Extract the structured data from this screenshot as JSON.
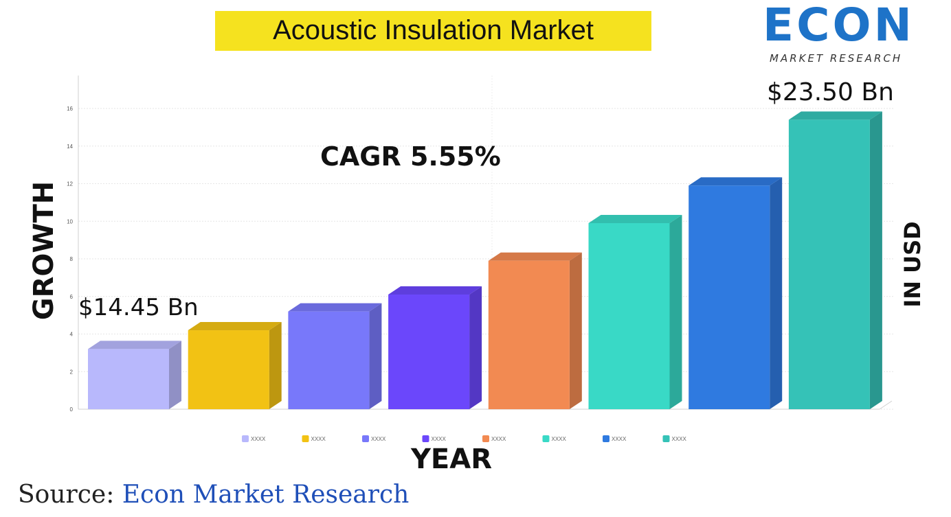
{
  "title": "Acoustic Insulation Market",
  "logo": {
    "text": "ECON",
    "subtitle": "MARKET RESEARCH"
  },
  "annotations": {
    "cagr": "CAGR 5.55%",
    "first_value": "$14.45 Bn",
    "last_value": "$23.50 Bn"
  },
  "source": {
    "prefix": "Source: ",
    "name": "Econ Market Research"
  },
  "chart_data": {
    "type": "bar",
    "categories": [
      "XXXX",
      "XXXX",
      "XXXX",
      "XXXX",
      "XXXX",
      "XXXX",
      "XXXX",
      "XXXX"
    ],
    "values": [
      3.2,
      4.2,
      5.2,
      6.1,
      7.9,
      9.9,
      11.9,
      15.4
    ],
    "colors": [
      "#b8b8fc",
      "#f2c214",
      "#7878fa",
      "#6b47fb",
      "#f28a52",
      "#39d9c6",
      "#2f7ae0",
      "#35c2b7"
    ],
    "xlabel": "YEAR",
    "ylabel": "GROWTH",
    "y2label": "IN USD",
    "ylim": [
      0,
      17
    ],
    "yticks": [
      0,
      2,
      4,
      6,
      8,
      10,
      12,
      14,
      16
    ],
    "grid": true,
    "legend": "bottom"
  }
}
